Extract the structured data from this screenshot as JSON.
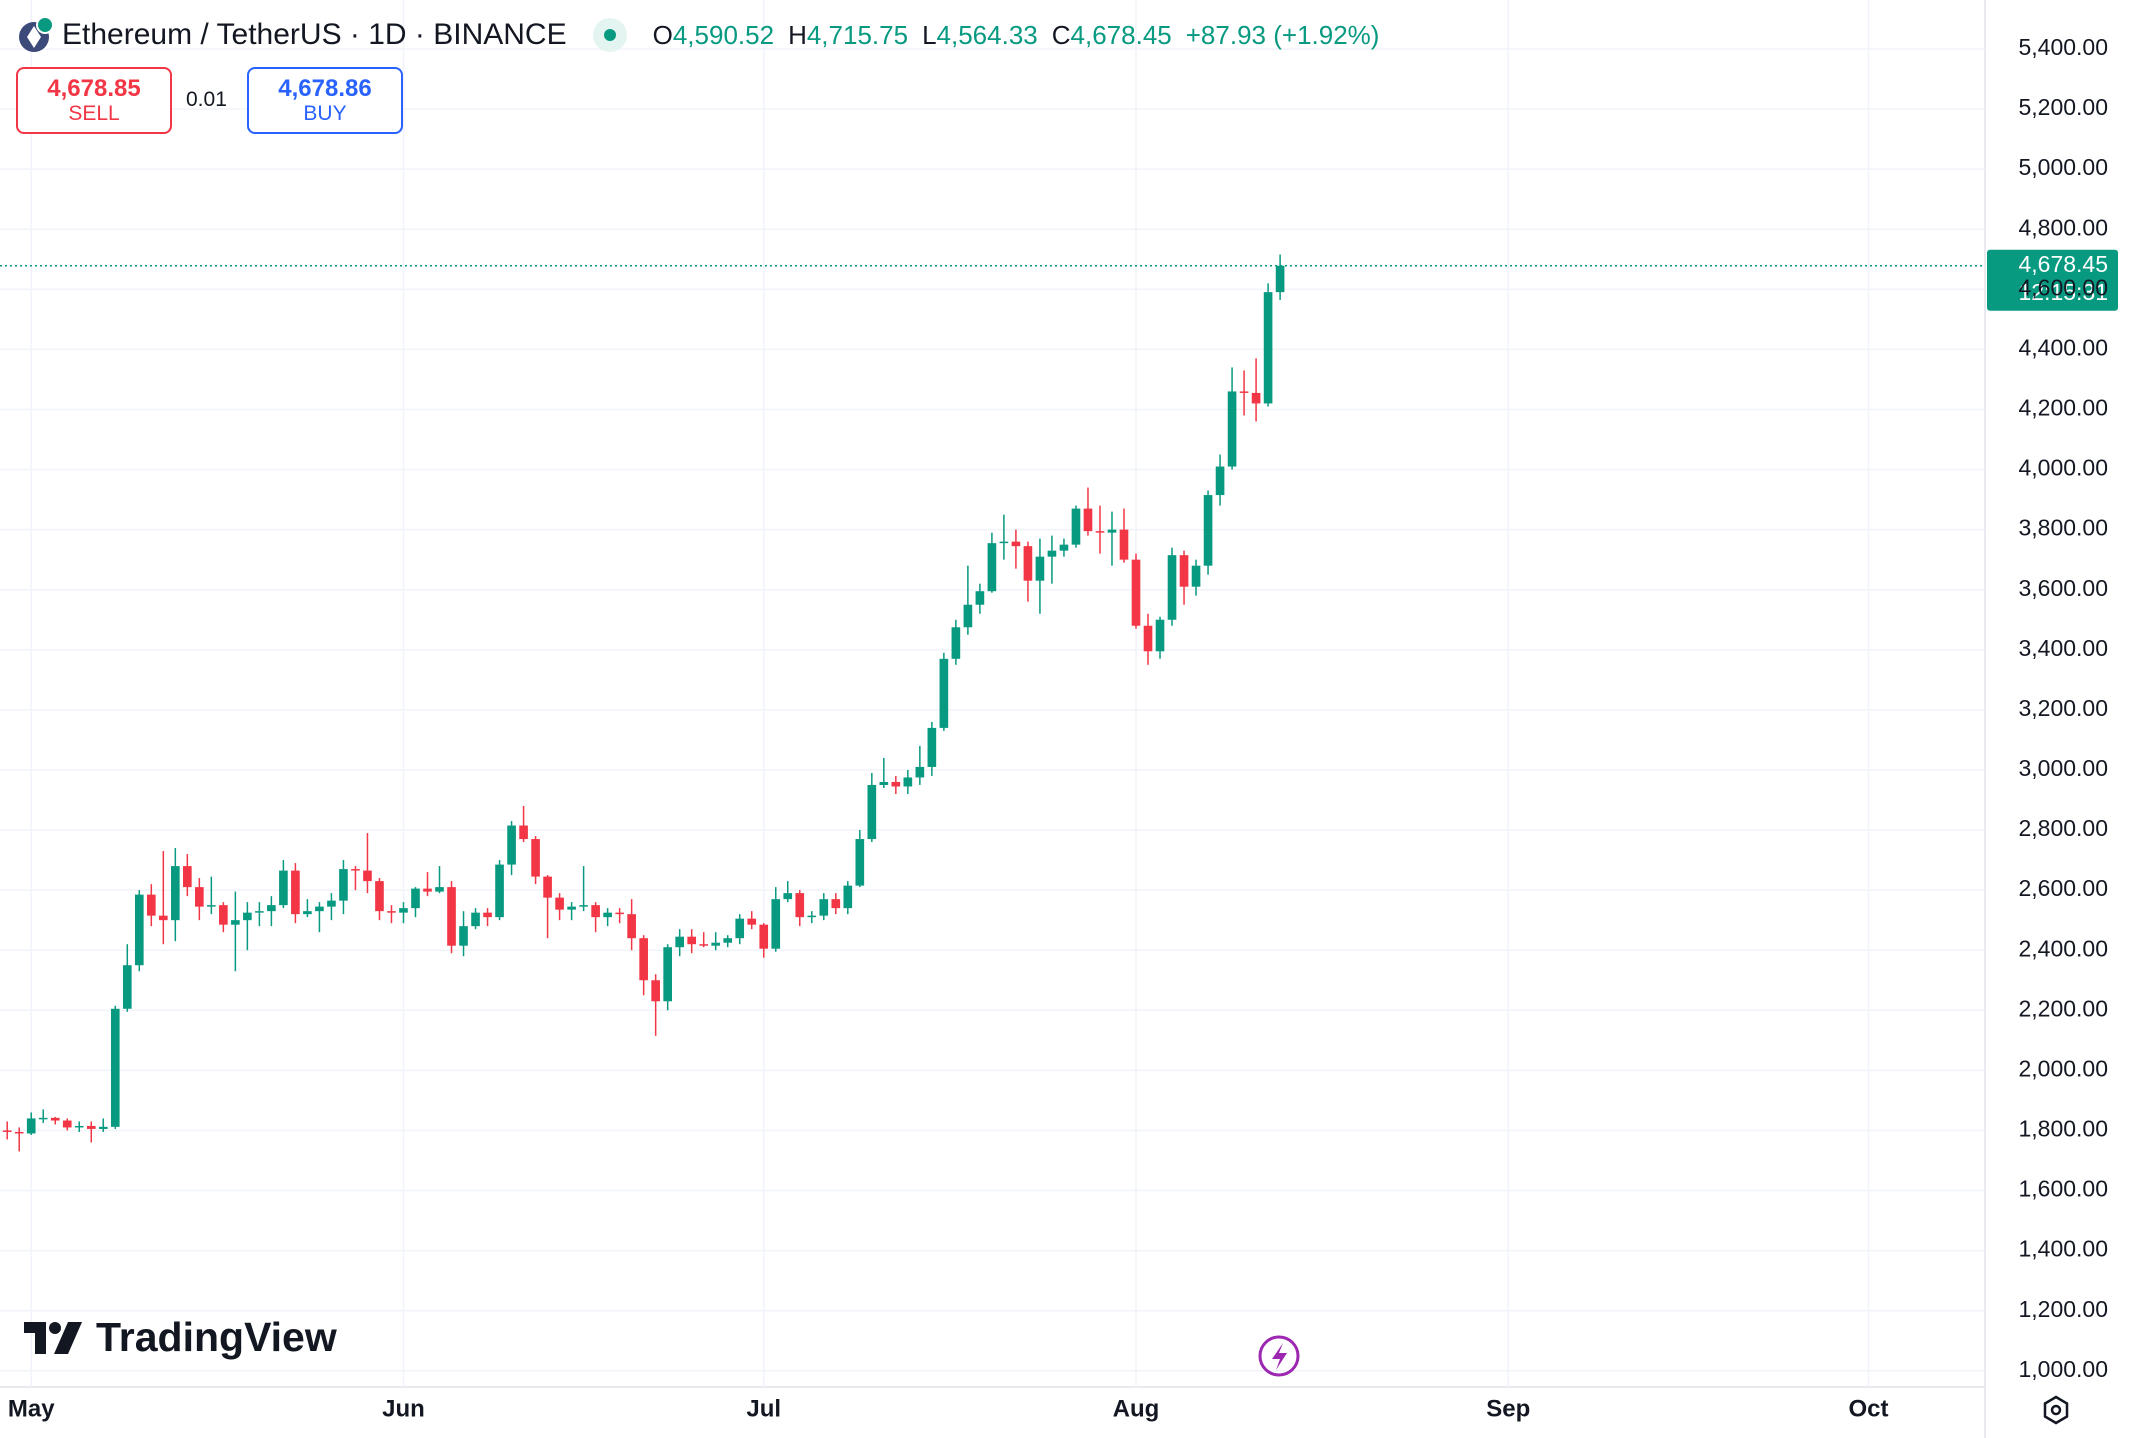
{
  "chart_data": {
    "type": "candlestick",
    "x": [
      119,
      120,
      121,
      122,
      123,
      124,
      125,
      126,
      127,
      128,
      129,
      130,
      131,
      132,
      133,
      134,
      135,
      136,
      137,
      138,
      139,
      140,
      141,
      142,
      143,
      144,
      145,
      146,
      147,
      148,
      149,
      150,
      151,
      152,
      153,
      154,
      155,
      156,
      157,
      158,
      159,
      160,
      161,
      162,
      163,
      164,
      165,
      166,
      167,
      168,
      169,
      170,
      171,
      172,
      173,
      174,
      175,
      176,
      177,
      178,
      179,
      180,
      181,
      182,
      183,
      184,
      185,
      186,
      187,
      188,
      189,
      190,
      191,
      192,
      193,
      194,
      195,
      196,
      197,
      198,
      199,
      200,
      201,
      202,
      203,
      204,
      205,
      206,
      207,
      208,
      209,
      210,
      211,
      212,
      213,
      214,
      215,
      216,
      217,
      218,
      219,
      220,
      221,
      222,
      223,
      224,
      225
    ],
    "open": [
      1800,
      1795,
      1790,
      1840,
      1842,
      1833,
      1810,
      1815,
      1805,
      1812,
      2205,
      2350,
      2585,
      2515,
      2500,
      2680,
      2610,
      2545,
      2550,
      2485,
      2500,
      2525,
      2530,
      2550,
      2665,
      2520,
      2530,
      2545,
      2565,
      2670,
      2665,
      2630,
      2530,
      2525,
      2540,
      2605,
      2595,
      2610,
      2415,
      2480,
      2525,
      2510,
      2685,
      2815,
      2770,
      2645,
      2575,
      2535,
      2545,
      2550,
      2510,
      2525,
      2520,
      2440,
      2300,
      2230,
      2410,
      2445,
      2420,
      2415,
      2425,
      2440,
      2505,
      2485,
      2405,
      2570,
      2590,
      2510,
      2515,
      2570,
      2540,
      2615,
      2770,
      2950,
      2960,
      2945,
      2975,
      3010,
      3140,
      3370,
      3475,
      3550,
      3595,
      3755,
      3760,
      3745,
      3630,
      3710,
      3730,
      3750,
      3870,
      3795,
      3790,
      3800,
      3700,
      3480,
      3395,
      3500,
      3715,
      3610,
      3680,
      3915,
      4010,
      4260,
      4255,
      4220,
      4590.52
    ],
    "high": [
      1830,
      1810,
      1860,
      1870,
      1845,
      1840,
      1830,
      1830,
      1840,
      2215,
      2420,
      2600,
      2620,
      2730,
      2740,
      2720,
      2640,
      2645,
      2560,
      2595,
      2560,
      2560,
      2580,
      2700,
      2690,
      2570,
      2560,
      2590,
      2700,
      2680,
      2790,
      2640,
      2550,
      2560,
      2610,
      2660,
      2680,
      2630,
      2530,
      2540,
      2540,
      2700,
      2830,
      2880,
      2780,
      2650,
      2590,
      2560,
      2680,
      2560,
      2540,
      2540,
      2570,
      2450,
      2320,
      2420,
      2470,
      2470,
      2460,
      2460,
      2450,
      2520,
      2530,
      2490,
      2610,
      2630,
      2600,
      2530,
      2590,
      2590,
      2630,
      2800,
      2990,
      3040,
      2980,
      3000,
      3080,
      3160,
      3390,
      3500,
      3680,
      3620,
      3790,
      3850,
      3800,
      3760,
      3770,
      3780,
      3770,
      3880,
      3940,
      3880,
      3860,
      3870,
      3720,
      3520,
      3510,
      3740,
      3730,
      3700,
      3930,
      4050,
      4340,
      4330,
      4370,
      4620,
      4715.75
    ],
    "low": [
      1770,
      1730,
      1785,
      1825,
      1820,
      1800,
      1795,
      1760,
      1795,
      1805,
      2195,
      2330,
      2480,
      2420,
      2430,
      2580,
      2500,
      2520,
      2460,
      2330,
      2400,
      2480,
      2480,
      2540,
      2490,
      2510,
      2460,
      2500,
      2520,
      2600,
      2590,
      2500,
      2490,
      2490,
      2510,
      2580,
      2590,
      2390,
      2380,
      2470,
      2480,
      2500,
      2650,
      2760,
      2620,
      2440,
      2500,
      2500,
      2530,
      2460,
      2480,
      2490,
      2400,
      2250,
      2115,
      2200,
      2380,
      2390,
      2410,
      2400,
      2410,
      2420,
      2470,
      2375,
      2395,
      2560,
      2480,
      2490,
      2500,
      2520,
      2520,
      2610,
      2760,
      2940,
      2920,
      2920,
      2950,
      2980,
      3130,
      3350,
      3450,
      3520,
      3590,
      3700,
      3670,
      3560,
      3520,
      3620,
      3710,
      3740,
      3780,
      3720,
      3680,
      3690,
      3470,
      3350,
      3370,
      3480,
      3550,
      3580,
      3650,
      3880,
      4000,
      4180,
      4160,
      4210,
      4564.33
    ],
    "close": [
      1795,
      1790,
      1840,
      1842,
      1833,
      1810,
      1815,
      1805,
      1812,
      2205,
      2350,
      2585,
      2515,
      2500,
      2680,
      2610,
      2545,
      2550,
      2485,
      2500,
      2525,
      2530,
      2550,
      2665,
      2520,
      2530,
      2545,
      2565,
      2670,
      2665,
      2630,
      2530,
      2525,
      2540,
      2605,
      2595,
      2610,
      2415,
      2480,
      2525,
      2510,
      2685,
      2815,
      2770,
      2645,
      2575,
      2535,
      2545,
      2550,
      2510,
      2525,
      2520,
      2440,
      2300,
      2230,
      2410,
      2445,
      2420,
      2415,
      2425,
      2440,
      2505,
      2485,
      2405,
      2570,
      2590,
      2510,
      2515,
      2570,
      2540,
      2615,
      2770,
      2950,
      2960,
      2945,
      2975,
      3010,
      3140,
      3370,
      3475,
      3550,
      3595,
      3755,
      3760,
      3745,
      3630,
      3710,
      3730,
      3750,
      3870,
      3795,
      3790,
      3800,
      3700,
      3480,
      3395,
      3500,
      3715,
      3610,
      3680,
      3915,
      4010,
      4260,
      4255,
      4220,
      4590.52,
      4678.45
    ],
    "up_color": "#089981",
    "down_color": "#f23645",
    "xlim": [
      118.4,
      283.7
    ],
    "xticks": [
      {
        "value": 121,
        "label": "May"
      },
      {
        "value": 152,
        "label": "Jun"
      },
      {
        "value": 182,
        "label": "Jul"
      },
      {
        "value": 213,
        "label": "Aug"
      },
      {
        "value": 244,
        "label": "Sep"
      },
      {
        "value": 274,
        "label": "Oct"
      }
    ],
    "ylim": [
      946,
      5563
    ],
    "yticks": [
      {
        "value": 1000,
        "label": "1,000.00"
      },
      {
        "value": 1200,
        "label": "1,200.00"
      },
      {
        "value": 1400,
        "label": "1,400.00"
      },
      {
        "value": 1600,
        "label": "1,600.00"
      },
      {
        "value": 1800,
        "label": "1,800.00"
      },
      {
        "value": 2000,
        "label": "2,000.00"
      },
      {
        "value": 2200,
        "label": "2,200.00"
      },
      {
        "value": 2400,
        "label": "2,400.00"
      },
      {
        "value": 2600,
        "label": "2,600.00"
      },
      {
        "value": 2800,
        "label": "2,800.00"
      },
      {
        "value": 3000,
        "label": "3,000.00"
      },
      {
        "value": 3200,
        "label": "3,200.00"
      },
      {
        "value": 3400,
        "label": "3,400.00"
      },
      {
        "value": 3600,
        "label": "3,600.00"
      },
      {
        "value": 3800,
        "label": "3,800.00"
      },
      {
        "value": 4000,
        "label": "4,000.00"
      },
      {
        "value": 4200,
        "label": "4,200.00"
      },
      {
        "value": 4400,
        "label": "4,400.00"
      },
      {
        "value": 4600,
        "label": "4,600.00"
      },
      {
        "value": 4800,
        "label": "4,800.00"
      },
      {
        "value": 5000,
        "label": "5,000.00"
      },
      {
        "value": 5200,
        "label": "5,200.00"
      },
      {
        "value": 5400,
        "label": "5,400.00"
      }
    ],
    "grid": true,
    "last_price": {
      "value": 4678.45,
      "label": "4,678.45",
      "countdown": "12:15:31",
      "color": "#089981"
    }
  },
  "header": {
    "title": "Ethereum / TetherUS · 1D · BINANCE",
    "open_label": "O",
    "open": "4,590.52",
    "high_label": "H",
    "high": "4,715.75",
    "low_label": "L",
    "low": "4,564.33",
    "close_label": "C",
    "close": "4,678.45",
    "change": "+87.93 (+1.92%)"
  },
  "trade": {
    "sell_price": "4,678.85",
    "sell_label": "SELL",
    "quantity": "0.01",
    "buy_price": "4,678.86",
    "buy_label": "BUY"
  },
  "branding": "TradingView"
}
